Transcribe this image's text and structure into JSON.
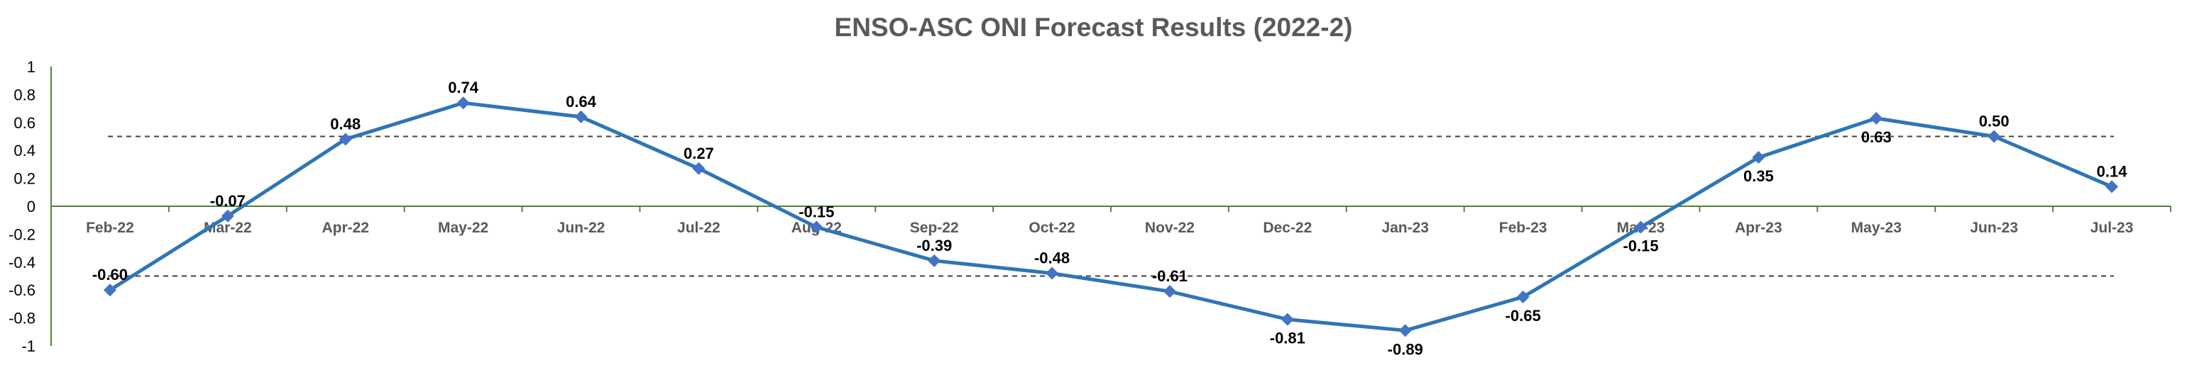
{
  "title": "ENSO-ASC ONI Forecast Results (2022-2)",
  "chart_data": {
    "type": "line",
    "title": "ENSO-ASC ONI Forecast Results (2022-2)",
    "xlabel": "",
    "ylabel": "",
    "categories": [
      "Feb-22",
      "Mar-22",
      "Apr-22",
      "May-22",
      "Jun-22",
      "Jul-22",
      "Aug-22",
      "Sep-22",
      "Oct-22",
      "Nov-22",
      "Dec-22",
      "Jan-23",
      "Feb-23",
      "Mar-23",
      "Apr-23",
      "May-23",
      "Jun-23",
      "Jul-23"
    ],
    "series": [
      {
        "values": [
          -0.6,
          -0.07,
          0.48,
          0.74,
          0.64,
          0.27,
          -0.15,
          -0.39,
          -0.48,
          -0.61,
          -0.81,
          -0.89,
          -0.65,
          -0.15,
          0.35,
          0.63,
          0.5,
          0.14
        ],
        "labels": [
          "-0.60",
          "-0.07",
          "0.48",
          "0.74",
          "0.64",
          "0.27",
          "-0.15",
          "-0.39",
          "-0.48",
          "-0.61",
          "-0.81",
          "-0.89",
          "-0.65",
          "-0.15",
          "0.35",
          "0.63",
          "0.50",
          "0.14"
        ],
        "label_side": [
          "above",
          "above",
          "above",
          "above",
          "above",
          "above",
          "above",
          "above",
          "above",
          "above",
          "below",
          "below",
          "below",
          "below",
          "below",
          "below",
          "above",
          "above"
        ],
        "color": "#2E75B6",
        "marker": "diamond",
        "marker_color": "#4472C4"
      }
    ],
    "yticks": [
      1,
      0.8,
      0.6,
      0.4,
      0.2,
      0,
      -0.2,
      -0.4,
      -0.6,
      -0.8,
      -1
    ],
    "ytick_labels": [
      "1",
      "0.8",
      "0.6",
      "0.4",
      "0.2",
      "0",
      "-0.2",
      "-0.4",
      "-0.6",
      "-0.8",
      "-1"
    ],
    "ylim": [
      -1,
      1
    ],
    "reference_lines": [
      0.5,
      -0.5
    ],
    "reference_line_style": "dashed",
    "grid": false,
    "legend": "none",
    "axis_color": "#548235"
  }
}
